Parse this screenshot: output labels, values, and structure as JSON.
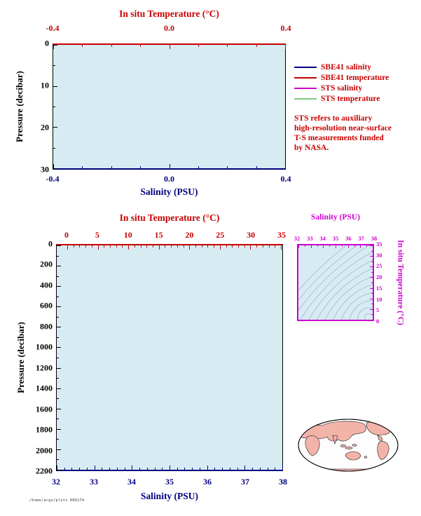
{
  "panel1": {
    "top_title": "In situ Temperature (°C)",
    "top_ticks": [
      "-0.4",
      "0.0",
      "0.4"
    ],
    "left_ticks": [
      "0",
      "10",
      "20",
      "30"
    ],
    "ylabel": "Pressure (decibar)",
    "bottom_ticks": [
      "-0.4",
      "0.0",
      "0.4"
    ],
    "bottom_title": "Salinity (PSU)"
  },
  "legend": {
    "items": [
      {
        "label": "SBE41 salinity",
        "color": "#000080"
      },
      {
        "label": "SBE41 temperature",
        "color": "#c80000"
      },
      {
        "label": "STS salinity",
        "color": "#cc00cc"
      },
      {
        "label": "STS temperature",
        "color": "#7ec87e"
      }
    ],
    "note_lines": [
      "STS refers to auxiliary",
      "high-resolution near-surface",
      "T-S measurements funded",
      "by NASA."
    ]
  },
  "panel2": {
    "top_title": "In situ Temperature (°C)",
    "top_ticks": [
      "0",
      "5",
      "10",
      "15",
      "20",
      "25",
      "30",
      "35"
    ],
    "left_ticks": [
      "0",
      "200",
      "400",
      "600",
      "800",
      "1000",
      "1200",
      "1400",
      "1600",
      "1800",
      "2000",
      "2200"
    ],
    "ylabel": "Pressure (decibar)",
    "bottom_ticks": [
      "32",
      "33",
      "34",
      "35",
      "36",
      "37",
      "38"
    ],
    "bottom_title": "Salinity (PSU)"
  },
  "panel3": {
    "top_title": "Salinity (PSU)",
    "top_ticks": [
      "32",
      "33",
      "34",
      "35",
      "36",
      "37",
      "38"
    ],
    "right_ticks": [
      "35",
      "30",
      "25",
      "20",
      "15",
      "10",
      "5",
      "0"
    ],
    "right_label": "In situ Temperature (°C)"
  },
  "stamp": "/home/argo/plots 000274",
  "colors": {
    "temperature_axis": "#c80000",
    "salinity_axis": "#000080",
    "ts_frame": "#cc00cc",
    "plot_background": "#d7ebf3",
    "land": "#f2b3a9"
  },
  "chart_data": [
    {
      "type": "line",
      "panel": "near-surface profile",
      "top_axis": {
        "label": "In situ Temperature (°C)",
        "range": [
          -0.4,
          0.4
        ],
        "ticks": [
          -0.4,
          0.0,
          0.4
        ],
        "color": "#c80000"
      },
      "bottom_axis": {
        "label": "Salinity (PSU)",
        "range": [
          -0.4,
          0.4
        ],
        "ticks": [
          -0.4,
          0.0,
          0.4
        ],
        "color": "#000080"
      },
      "y_axis": {
        "label": "Pressure (decibar)",
        "range": [
          0,
          30
        ],
        "ticks": [
          0,
          10,
          20,
          30
        ],
        "direction": "increasing downward"
      },
      "series": [
        {
          "name": "SBE41 salinity",
          "color": "#000080",
          "points": []
        },
        {
          "name": "SBE41 temperature",
          "color": "#c80000",
          "points": []
        },
        {
          "name": "STS salinity",
          "color": "#cc00cc",
          "points": []
        },
        {
          "name": "STS temperature",
          "color": "#7ec87e",
          "points": []
        }
      ],
      "notes": "empty axes frame, no profile trace visible; light-blue plot background",
      "grid": false
    },
    {
      "type": "line",
      "panel": "full-depth profile",
      "top_axis": {
        "label": "In situ Temperature (°C)",
        "range": [
          0,
          35
        ],
        "ticks": [
          0,
          5,
          10,
          15,
          20,
          25,
          30,
          35
        ],
        "color": "#c80000"
      },
      "bottom_axis": {
        "label": "Salinity (PSU)",
        "range": [
          32,
          38
        ],
        "ticks": [
          32,
          33,
          34,
          35,
          36,
          37,
          38
        ],
        "color": "#000080"
      },
      "y_axis": {
        "label": "Pressure (decibar)",
        "range": [
          0,
          2200
        ],
        "ticks": [
          0,
          200,
          400,
          600,
          800,
          1000,
          1200,
          1400,
          1600,
          1800,
          2000,
          2200
        ],
        "direction": "increasing downward"
      },
      "series": [],
      "notes": "empty axes frame, no profile trace visible; light-blue plot background",
      "grid": false
    },
    {
      "type": "line",
      "panel": "T-S diagram",
      "top_axis": {
        "label": "Salinity (PSU)",
        "range": [
          32,
          38
        ],
        "ticks": [
          32,
          33,
          34,
          35,
          36,
          37,
          38
        ],
        "color": "#cc00cc"
      },
      "right_axis": {
        "label": "In situ Temperature (°C)",
        "range": [
          0,
          35
        ],
        "ticks": [
          0,
          5,
          10,
          15,
          20,
          25,
          30,
          35
        ],
        "color": "#cc00cc"
      },
      "series": [],
      "annotations": "thin pale isopycnal density contour curves sweep diagonally across the panel; no T-S data plotted",
      "grid": false
    },
    {
      "type": "map",
      "panel": "global locator map",
      "projection": "elliptical whole-world projection, Pacific-centered",
      "land_color": "#f2b3a9",
      "markers": []
    }
  ]
}
